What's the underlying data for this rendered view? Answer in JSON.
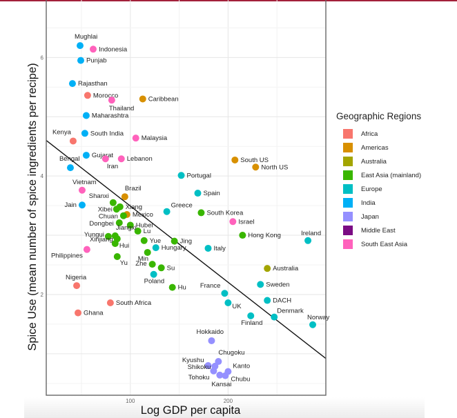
{
  "chart_data": {
    "type": "scatter",
    "xlabel": "Log GDP per capita",
    "ylabel": "Spice Use (mean number of spice ingredients per recipe)",
    "xlim": [
      14,
      300
    ],
    "ylim": [
      0.3,
      6.97
    ],
    "x_ticks": [
      100,
      200
    ],
    "y_ticks": [
      2,
      4,
      6
    ],
    "grid": true,
    "legend": {
      "title": "Geographic Regions",
      "placement": "right",
      "entries": [
        {
          "name": "Africa",
          "color": "#F8766D"
        },
        {
          "name": "Americas",
          "color": "#D89000"
        },
        {
          "name": "Australia",
          "color": "#A3A500"
        },
        {
          "name": "East Asia (mainland)",
          "color": "#39B600"
        },
        {
          "name": "Europe",
          "color": "#00BFC4"
        },
        {
          "name": "India",
          "color": "#00B0F6"
        },
        {
          "name": "Japan",
          "color": "#9590FF"
        },
        {
          "name": "Middle East",
          "color": "#7B0C84"
        },
        {
          "name": "South East Asia",
          "color": "#FF62BC"
        }
      ]
    },
    "trend_line": {
      "x": [
        14,
        300
      ],
      "y": [
        4.6,
        0.92
      ]
    },
    "points": [
      {
        "label": "Mughlai",
        "region": "India",
        "x": 48.6,
        "y": 6.2
      },
      {
        "label": "Indonesia",
        "region": "South East Asia",
        "x": 62.0,
        "y": 6.14
      },
      {
        "label": "Punjab",
        "region": "India",
        "x": 49.3,
        "y": 5.95
      },
      {
        "label": "Rajasthan",
        "region": "India",
        "x": 40.8,
        "y": 5.56
      },
      {
        "label": "Morocco",
        "region": "Africa",
        "x": 56.3,
        "y": 5.36
      },
      {
        "label": "Thailand",
        "region": "South East Asia",
        "x": 81.0,
        "y": 5.28
      },
      {
        "label": "Caribbean",
        "region": "Americas",
        "x": 112.7,
        "y": 5.3
      },
      {
        "label": "Maharashtra",
        "region": "India",
        "x": 54.9,
        "y": 5.02
      },
      {
        "label": "South India",
        "region": "India",
        "x": 53.5,
        "y": 4.72
      },
      {
        "label": "Kenya",
        "region": "Africa",
        "x": 41.5,
        "y": 4.59
      },
      {
        "label": "Malaysia",
        "region": "South East Asia",
        "x": 105.6,
        "y": 4.64
      },
      {
        "label": "Gujarat",
        "region": "India",
        "x": 54.9,
        "y": 4.35
      },
      {
        "label": "Iran",
        "region": "South East Asia",
        "x": 74.6,
        "y": 4.29
      },
      {
        "label": "Lebanon",
        "region": "South East Asia",
        "x": 90.8,
        "y": 4.29
      },
      {
        "label": "Bengal",
        "region": "India",
        "x": 38.7,
        "y": 4.14
      },
      {
        "label": "South US",
        "region": "Americas",
        "x": 207.0,
        "y": 4.27
      },
      {
        "label": "North US",
        "region": "Americas",
        "x": 228.2,
        "y": 4.15
      },
      {
        "label": "Portugal",
        "region": "Europe",
        "x": 152.1,
        "y": 4.01
      },
      {
        "label": "Vietnam",
        "region": "South East Asia",
        "x": 50.7,
        "y": 3.76
      },
      {
        "label": "Brazil",
        "region": "Americas",
        "x": 94.4,
        "y": 3.65
      },
      {
        "label": "Spain",
        "region": "Europe",
        "x": 169.0,
        "y": 3.71
      },
      {
        "label": "Jain",
        "region": "India",
        "x": 50.7,
        "y": 3.51
      },
      {
        "label": "Shanxi",
        "region": "East Asia (mainland)",
        "x": 82.4,
        "y": 3.55
      },
      {
        "label": "Xibei",
        "region": "East Asia (mainland)",
        "x": 85.9,
        "y": 3.44
      },
      {
        "label": "Xiang",
        "region": "East Asia (mainland)",
        "x": 89.4,
        "y": 3.48
      },
      {
        "label": "Greece",
        "region": "Europe",
        "x": 137.3,
        "y": 3.4
      },
      {
        "label": "South Korea",
        "region": "East Asia (mainland)",
        "x": 172.5,
        "y": 3.38
      },
      {
        "label": "Mexico",
        "region": "Americas",
        "x": 96.5,
        "y": 3.35
      },
      {
        "label": "Chuan",
        "region": "East Asia (mainland)",
        "x": 93.0,
        "y": 3.33
      },
      {
        "label": "Israel",
        "region": "South East Asia",
        "x": 204.9,
        "y": 3.23
      },
      {
        "label": "Dongbei",
        "region": "East Asia (mainland)",
        "x": 88.7,
        "y": 3.21
      },
      {
        "label": "Hubei",
        "region": "East Asia (mainland)",
        "x": 100.0,
        "y": 3.17
      },
      {
        "label": "Lu",
        "region": "East Asia (mainland)",
        "x": 107.7,
        "y": 3.07
      },
      {
        "label": "Yungui",
        "region": "East Asia (mainland)",
        "x": 77.5,
        "y": 2.98
      },
      {
        "label": "Jiangxi",
        "region": "East Asia (mainland)",
        "x": 84.5,
        "y": 2.99
      },
      {
        "label": "Xinjiang",
        "region": "East Asia (mainland)",
        "x": 86.6,
        "y": 2.94
      },
      {
        "label": "Hui",
        "region": "East Asia (mainland)",
        "x": 84.5,
        "y": 2.86
      },
      {
        "label": "Hong Kong",
        "region": "East Asia (mainland)",
        "x": 214.8,
        "y": 3.0
      },
      {
        "label": "Ireland",
        "region": "Europe",
        "x": 281.7,
        "y": 2.91
      },
      {
        "label": "Yue",
        "region": "East Asia (mainland)",
        "x": 114.1,
        "y": 2.91
      },
      {
        "label": "Jing",
        "region": "East Asia (mainland)",
        "x": 145.1,
        "y": 2.9
      },
      {
        "label": "Hungary",
        "region": "Europe",
        "x": 126.1,
        "y": 2.79
      },
      {
        "label": "Italy",
        "region": "Europe",
        "x": 179.6,
        "y": 2.78
      },
      {
        "label": "Philippines",
        "region": "South East Asia",
        "x": 55.6,
        "y": 2.76
      },
      {
        "label": "Min",
        "region": "East Asia (mainland)",
        "x": 117.6,
        "y": 2.71
      },
      {
        "label": "Yu",
        "region": "East Asia (mainland)",
        "x": 86.6,
        "y": 2.64
      },
      {
        "label": "Zhe",
        "region": "East Asia (mainland)",
        "x": 122.5,
        "y": 2.51
      },
      {
        "label": "Australia",
        "region": "Australia",
        "x": 240.1,
        "y": 2.44
      },
      {
        "label": "Su",
        "region": "East Asia (mainland)",
        "x": 131.7,
        "y": 2.45
      },
      {
        "label": "Poland",
        "region": "Europe",
        "x": 123.9,
        "y": 2.34
      },
      {
        "label": "Sweden",
        "region": "Europe",
        "x": 233.1,
        "y": 2.17
      },
      {
        "label": "Nigeria",
        "region": "Africa",
        "x": 45.1,
        "y": 2.15
      },
      {
        "label": "Hu",
        "region": "East Asia (mainland)",
        "x": 143.0,
        "y": 2.12
      },
      {
        "label": "France",
        "region": "Europe",
        "x": 196.5,
        "y": 2.02
      },
      {
        "label": "DACH",
        "region": "Europe",
        "x": 240.1,
        "y": 1.9
      },
      {
        "label": "South Africa",
        "region": "Africa",
        "x": 79.6,
        "y": 1.86
      },
      {
        "label": "UK",
        "region": "Europe",
        "x": 200.0,
        "y": 1.86
      },
      {
        "label": "Ghana",
        "region": "Africa",
        "x": 46.5,
        "y": 1.69
      },
      {
        "label": "Finland",
        "region": "Europe",
        "x": 223.2,
        "y": 1.64
      },
      {
        "label": "Denmark",
        "region": "Europe",
        "x": 247.2,
        "y": 1.62
      },
      {
        "label": "Norway",
        "region": "Europe",
        "x": 286.6,
        "y": 1.49
      },
      {
        "label": "Hokkaido",
        "region": "Japan",
        "x": 183.1,
        "y": 1.22
      },
      {
        "label": "Chugoku",
        "region": "Japan",
        "x": 190.1,
        "y": 0.87
      },
      {
        "label": "Kyushu",
        "region": "Japan",
        "x": 179.6,
        "y": 0.8
      },
      {
        "label": "Shikoku",
        "region": "Japan",
        "x": 186.6,
        "y": 0.79
      },
      {
        "label": "Kanto",
        "region": "Japan",
        "x": 200.0,
        "y": 0.7
      },
      {
        "label": "Tohoku",
        "region": "Japan",
        "x": 185.2,
        "y": 0.71
      },
      {
        "label": "Kansai",
        "region": "Japan",
        "x": 191.5,
        "y": 0.64
      },
      {
        "label": "Chubu",
        "region": "Japan",
        "x": 197.2,
        "y": 0.63
      }
    ]
  }
}
